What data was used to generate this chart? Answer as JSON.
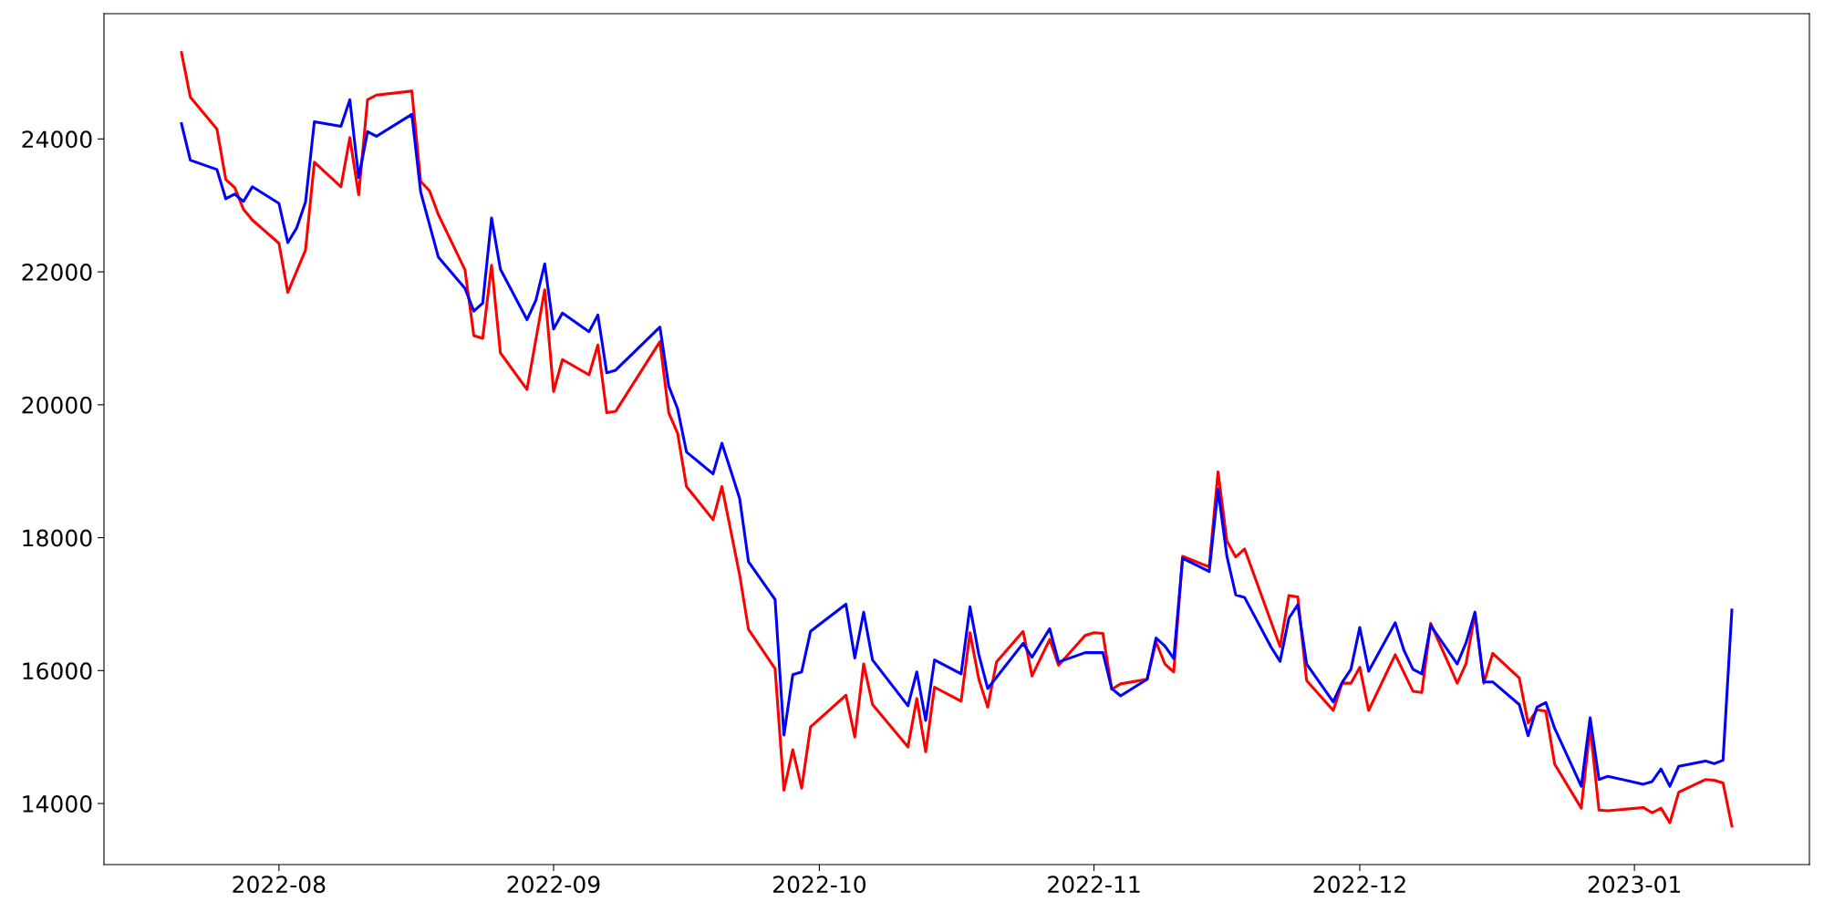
{
  "chart_data": {
    "type": "line",
    "xlim": [
      "2022-07-12T06:00",
      "2023-01-20T18:00"
    ],
    "ylim": [
      13081,
      25885
    ],
    "xticks": [
      {
        "value": "2022-08-01",
        "label": "2022-08"
      },
      {
        "value": "2022-09-01",
        "label": "2022-09"
      },
      {
        "value": "2022-10-01",
        "label": "2022-10"
      },
      {
        "value": "2022-11-01",
        "label": "2022-11"
      },
      {
        "value": "2022-12-01",
        "label": "2022-12"
      },
      {
        "value": "2023-01-01",
        "label": "2023-01"
      }
    ],
    "yticks": [
      14000,
      16000,
      18000,
      20000,
      22000,
      24000
    ],
    "grid": false,
    "line_style": "solid",
    "marker": "none",
    "series": [
      {
        "color": "#ff0000",
        "x": [
          "2022-07-21",
          "2022-07-22",
          "2022-07-25",
          "2022-07-26",
          "2022-07-27",
          "2022-07-28",
          "2022-07-29",
          "2022-08-01",
          "2022-08-02",
          "2022-08-03",
          "2022-08-04",
          "2022-08-05",
          "2022-08-08",
          "2022-08-09",
          "2022-08-10",
          "2022-08-11",
          "2022-08-12",
          "2022-08-16",
          "2022-08-17",
          "2022-08-18",
          "2022-08-19",
          "2022-08-22",
          "2022-08-23",
          "2022-08-24",
          "2022-08-25",
          "2022-08-26",
          "2022-08-29",
          "2022-08-31",
          "2022-09-01",
          "2022-09-02",
          "2022-09-05",
          "2022-09-06",
          "2022-09-07",
          "2022-09-08",
          "2022-09-13",
          "2022-09-14",
          "2022-09-15",
          "2022-09-16",
          "2022-09-19",
          "2022-09-20",
          "2022-09-22",
          "2022-09-23",
          "2022-09-26",
          "2022-09-27",
          "2022-09-28",
          "2022-09-29",
          "2022-09-30",
          "2022-10-04",
          "2022-10-05",
          "2022-10-06",
          "2022-10-07",
          "2022-10-11",
          "2022-10-12",
          "2022-10-13",
          "2022-10-14",
          "2022-10-17",
          "2022-10-18",
          "2022-10-19",
          "2022-10-20",
          "2022-10-21",
          "2022-10-24",
          "2022-10-25",
          "2022-10-27",
          "2022-10-28",
          "2022-10-31",
          "2022-11-01",
          "2022-11-02",
          "2022-11-03",
          "2022-11-04",
          "2022-11-07",
          "2022-11-08",
          "2022-11-09",
          "2022-11-10",
          "2022-11-11",
          "2022-11-14",
          "2022-11-15",
          "2022-11-16",
          "2022-11-17",
          "2022-11-18",
          "2022-11-22",
          "2022-11-23",
          "2022-11-24",
          "2022-11-25",
          "2022-11-28",
          "2022-11-29",
          "2022-11-30",
          "2022-12-01",
          "2022-12-02",
          "2022-12-05",
          "2022-12-07",
          "2022-12-08",
          "2022-12-09",
          "2022-12-12",
          "2022-12-13",
          "2022-12-14",
          "2022-12-15",
          "2022-12-16",
          "2022-12-19",
          "2022-12-20",
          "2022-12-21",
          "2022-12-22",
          "2022-12-23",
          "2022-12-26",
          "2022-12-27",
          "2022-12-28",
          "2022-12-29",
          "2023-01-02",
          "2023-01-03",
          "2023-01-04",
          "2023-01-05",
          "2023-01-06",
          "2023-01-09",
          "2023-01-10",
          "2023-01-11",
          "2023-01-12"
        ],
        "values": [
          25300,
          24630,
          24150,
          23390,
          23270,
          22940,
          22780,
          22430,
          21690,
          22010,
          22330,
          23650,
          23280,
          24020,
          23160,
          24590,
          24660,
          24720,
          23360,
          23220,
          22860,
          22030,
          21040,
          21000,
          22100,
          20780,
          20230,
          21730,
          20200,
          20680,
          20450,
          20900,
          19880,
          19900,
          20950,
          19880,
          19570,
          18770,
          18270,
          18770,
          17440,
          16620,
          16030,
          14200,
          14810,
          14230,
          15150,
          15630,
          15000,
          16100,
          15490,
          14850,
          15580,
          14780,
          15750,
          15540,
          16570,
          15870,
          15450,
          16130,
          16590,
          15920,
          16470,
          16080,
          16530,
          16570,
          16560,
          15720,
          15800,
          15870,
          16430,
          16100,
          15980,
          17720,
          17560,
          18990,
          17950,
          17710,
          17830,
          16360,
          17130,
          17110,
          15850,
          15400,
          15810,
          15810,
          16050,
          15400,
          16240,
          15690,
          15670,
          16710,
          15810,
          16110,
          16860,
          15810,
          16260,
          15890,
          15210,
          15410,
          15390,
          14590,
          13930,
          15160,
          13900,
          13890,
          13940,
          13860,
          13930,
          13710,
          14170,
          14360,
          14350,
          14310,
          13660
        ]
      },
      {
        "color": "#0000ff",
        "x": [
          "2022-07-21",
          "2022-07-22",
          "2022-07-25",
          "2022-07-26",
          "2022-07-27",
          "2022-07-28",
          "2022-07-29",
          "2022-08-01",
          "2022-08-02",
          "2022-08-03",
          "2022-08-04",
          "2022-08-05",
          "2022-08-08",
          "2022-08-09",
          "2022-08-10",
          "2022-08-11",
          "2022-08-12",
          "2022-08-16",
          "2022-08-17",
          "2022-08-19",
          "2022-08-22",
          "2022-08-23",
          "2022-08-24",
          "2022-08-25",
          "2022-08-26",
          "2022-08-29",
          "2022-08-30",
          "2022-08-31",
          "2022-09-01",
          "2022-09-02",
          "2022-09-05",
          "2022-09-06",
          "2022-09-07",
          "2022-09-08",
          "2022-09-13",
          "2022-09-14",
          "2022-09-15",
          "2022-09-16",
          "2022-09-19",
          "2022-09-20",
          "2022-09-21",
          "2022-09-22",
          "2022-09-23",
          "2022-09-26",
          "2022-09-27",
          "2022-09-28",
          "2022-09-29",
          "2022-09-30",
          "2022-10-04",
          "2022-10-05",
          "2022-10-06",
          "2022-10-07",
          "2022-10-11",
          "2022-10-12",
          "2022-10-13",
          "2022-10-14",
          "2022-10-17",
          "2022-10-18",
          "2022-10-19",
          "2022-10-20",
          "2022-10-24",
          "2022-10-25",
          "2022-10-27",
          "2022-10-28",
          "2022-10-31",
          "2022-11-02",
          "2022-11-03",
          "2022-11-04",
          "2022-11-07",
          "2022-11-08",
          "2022-11-09",
          "2022-11-10",
          "2022-11-11",
          "2022-11-14",
          "2022-11-15",
          "2022-11-16",
          "2022-11-17",
          "2022-11-18",
          "2022-11-21",
          "2022-11-22",
          "2022-11-23",
          "2022-11-24",
          "2022-11-25",
          "2022-11-28",
          "2022-11-29",
          "2022-11-30",
          "2022-12-01",
          "2022-12-02",
          "2022-12-05",
          "2022-12-06",
          "2022-12-07",
          "2022-12-08",
          "2022-12-09",
          "2022-12-12",
          "2022-12-13",
          "2022-12-14",
          "2022-12-15",
          "2022-12-16",
          "2022-12-19",
          "2022-12-20",
          "2022-12-21",
          "2022-12-22",
          "2022-12-23",
          "2022-12-26",
          "2022-12-27",
          "2022-12-28",
          "2022-12-29",
          "2023-01-02",
          "2023-01-03",
          "2023-01-04",
          "2023-01-05",
          "2023-01-06",
          "2023-01-09",
          "2023-01-10",
          "2023-01-11",
          "2023-01-12"
        ],
        "values": [
          24230,
          23680,
          23540,
          23100,
          23170,
          23060,
          23280,
          23030,
          22440,
          22660,
          23050,
          24260,
          24190,
          24590,
          23420,
          24110,
          24040,
          24370,
          23200,
          22220,
          21750,
          21410,
          21530,
          22810,
          22040,
          21280,
          21570,
          22120,
          21140,
          21380,
          21100,
          21350,
          20480,
          20520,
          21170,
          20280,
          19940,
          19290,
          18960,
          19420,
          19010,
          18590,
          17640,
          17070,
          15030,
          15940,
          15980,
          16590,
          17000,
          16190,
          16880,
          16160,
          15470,
          15980,
          15250,
          16160,
          15950,
          16960,
          16240,
          15730,
          16410,
          16200,
          16630,
          16130,
          16270,
          16270,
          15730,
          15620,
          15870,
          16490,
          16370,
          16180,
          17690,
          17490,
          18730,
          17720,
          17140,
          17100,
          16350,
          16140,
          16790,
          16990,
          16100,
          15530,
          15820,
          16020,
          16650,
          15990,
          16720,
          16300,
          16020,
          15950,
          16680,
          16100,
          16420,
          16880,
          15830,
          15830,
          15490,
          15020,
          15450,
          15520,
          15130,
          14260,
          15290,
          14360,
          14410,
          14290,
          14330,
          14520,
          14260,
          14560,
          14640,
          14600,
          14650,
          16910
        ]
      }
    ]
  }
}
